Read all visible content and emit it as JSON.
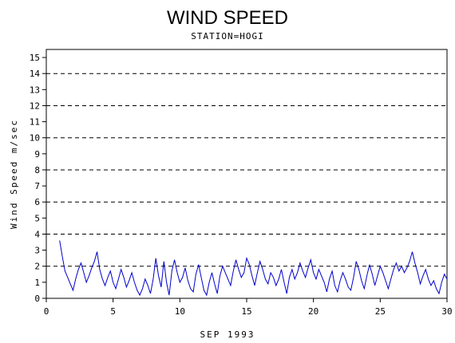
{
  "chart_data": {
    "type": "line",
    "title": "WIND SPEED",
    "subtitle": "STATION=HOGI",
    "xlabel": "SEP 1993",
    "ylabel": "Wind Speed m/sec",
    "xlim": [
      0,
      30
    ],
    "ylim": [
      0,
      15.5
    ],
    "x_ticks": [
      0,
      5,
      10,
      15,
      20,
      25,
      30
    ],
    "y_ticks": [
      0,
      1,
      2,
      3,
      4,
      5,
      6,
      7,
      8,
      9,
      10,
      11,
      12,
      13,
      14,
      15
    ],
    "reference_lines": [
      0,
      2,
      4,
      6,
      8,
      10,
      12,
      14
    ],
    "grid": false,
    "line_color": "#0000cc",
    "series": [
      {
        "name": "",
        "x": [
          1.0,
          1.2,
          1.4,
          1.6,
          1.8,
          2.0,
          2.2,
          2.4,
          2.6,
          2.8,
          3.0,
          3.2,
          3.4,
          3.6,
          3.8,
          4.0,
          4.2,
          4.4,
          4.6,
          4.8,
          5.0,
          5.2,
          5.4,
          5.6,
          5.8,
          6.0,
          6.2,
          6.4,
          6.6,
          6.8,
          7.0,
          7.2,
          7.4,
          7.6,
          7.8,
          8.0,
          8.2,
          8.4,
          8.6,
          8.8,
          9.0,
          9.2,
          9.4,
          9.6,
          9.8,
          10.0,
          10.2,
          10.4,
          10.6,
          10.8,
          11.0,
          11.2,
          11.4,
          11.6,
          11.8,
          12.0,
          12.2,
          12.4,
          12.6,
          12.8,
          13.0,
          13.2,
          13.4,
          13.6,
          13.8,
          14.0,
          14.2,
          14.4,
          14.6,
          14.8,
          15.0,
          15.2,
          15.4,
          15.6,
          15.8,
          16.0,
          16.2,
          16.4,
          16.6,
          16.8,
          17.0,
          17.2,
          17.4,
          17.6,
          17.8,
          18.0,
          18.2,
          18.4,
          18.6,
          18.8,
          19.0,
          19.2,
          19.4,
          19.6,
          19.8,
          20.0,
          20.2,
          20.4,
          20.6,
          20.8,
          21.0,
          21.2,
          21.4,
          21.6,
          21.8,
          22.0,
          22.2,
          22.4,
          22.6,
          22.8,
          23.0,
          23.2,
          23.4,
          23.6,
          23.8,
          24.0,
          24.2,
          24.4,
          24.6,
          24.8,
          25.0,
          25.2,
          25.4,
          25.6,
          25.8,
          26.0,
          26.2,
          26.4,
          26.6,
          26.8,
          27.0,
          27.2,
          27.4,
          27.6,
          27.8,
          28.0,
          28.2,
          28.4,
          28.6,
          28.8,
          29.0,
          29.2,
          29.4,
          29.6,
          29.8,
          30.0
        ],
        "values": [
          3.6,
          2.6,
          1.7,
          1.3,
          0.9,
          0.5,
          1.2,
          1.8,
          2.2,
          1.6,
          1.0,
          1.4,
          1.9,
          2.3,
          2.9,
          1.8,
          1.2,
          0.8,
          1.3,
          1.7,
          1.0,
          0.6,
          1.2,
          1.8,
          1.3,
          0.7,
          1.1,
          1.6,
          1.0,
          0.5,
          0.2,
          0.6,
          1.2,
          0.8,
          0.3,
          1.2,
          2.5,
          1.4,
          0.7,
          2.3,
          1.0,
          0.2,
          1.7,
          2.4,
          1.6,
          1.0,
          1.3,
          1.9,
          1.1,
          0.6,
          0.4,
          1.5,
          2.1,
          1.3,
          0.5,
          0.2,
          1.0,
          1.6,
          0.9,
          0.3,
          1.4,
          2.0,
          1.6,
          1.2,
          0.8,
          1.7,
          2.4,
          1.8,
          1.3,
          1.6,
          2.5,
          2.1,
          1.4,
          0.8,
          1.6,
          2.3,
          1.8,
          1.2,
          0.9,
          1.6,
          1.3,
          0.8,
          1.2,
          1.8,
          1.0,
          0.3,
          1.3,
          1.8,
          1.2,
          1.6,
          2.2,
          1.7,
          1.3,
          1.9,
          2.4,
          1.6,
          1.2,
          1.8,
          1.4,
          1.0,
          0.4,
          1.2,
          1.7,
          0.8,
          0.4,
          1.1,
          1.6,
          1.2,
          0.7,
          0.5,
          1.3,
          2.3,
          1.8,
          1.1,
          0.6,
          1.4,
          2.1,
          1.5,
          0.8,
          1.4,
          2.0,
          1.6,
          1.1,
          0.6,
          1.2,
          1.8,
          2.2,
          1.7,
          2.0,
          1.6,
          1.9,
          2.3,
          2.9,
          2.2,
          1.6,
          0.9,
          1.4,
          1.8,
          1.2,
          0.8,
          1.1,
          0.6,
          0.3,
          1.0,
          1.5,
          1.2
        ]
      }
    ]
  }
}
